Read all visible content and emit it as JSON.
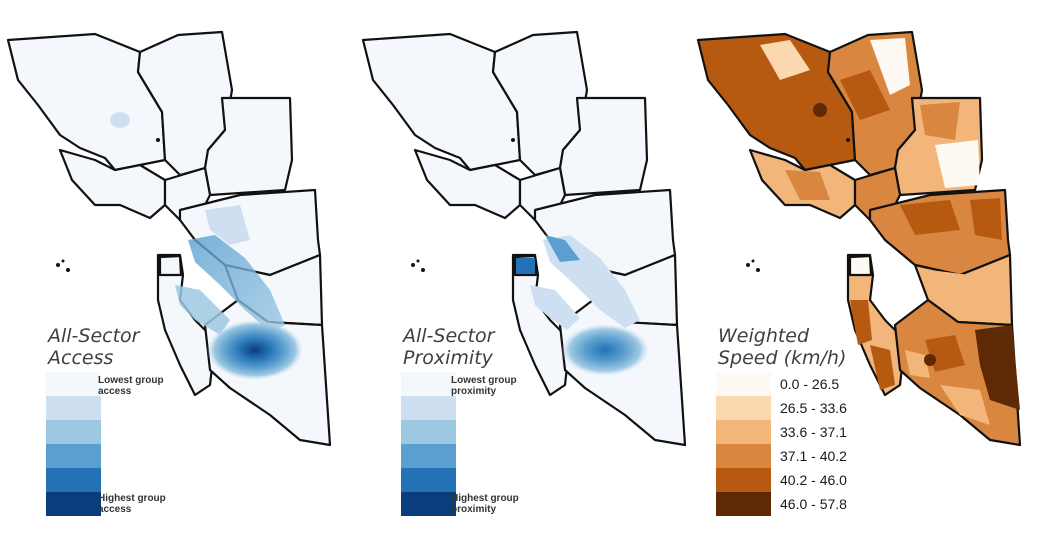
{
  "panels": [
    {
      "title_line1": "All-Sector",
      "title_line2": "Access",
      "low_line1": "Lowest group",
      "low_line2": "access",
      "high_line1": "Highest group",
      "high_line2": "access",
      "colors": [
        "#f4f8fd",
        "#cddff0",
        "#9dc8e2",
        "#5b9fd0",
        "#2372b5",
        "#0a3d7c"
      ]
    },
    {
      "title_line1": "All-Sector",
      "title_line2": "Proximity",
      "low_line1": "Lowest group",
      "low_line2": "proximity",
      "high_line1": "Highest group",
      "high_line2": "proximity",
      "colors": [
        "#f4f8fd",
        "#cddff0",
        "#9dc8e2",
        "#5b9fd0",
        "#2372b5",
        "#0a3d7c"
      ]
    },
    {
      "title_line1": "Weighted",
      "title_line2": "Speed (km/h)",
      "classes": [
        {
          "label": "0.0 - 26.5",
          "color": "#fff9f3"
        },
        {
          "label": "26.5 - 33.6",
          "color": "#fcd8b0"
        },
        {
          "label": "33.6 - 37.1",
          "color": "#f2b57a"
        },
        {
          "label": "37.1 - 40.2",
          "color": "#d98640"
        },
        {
          "label": "40.2 - 46.0",
          "color": "#b65a12"
        },
        {
          "label": "46.0 - 57.8",
          "color": "#5e2a05"
        }
      ]
    }
  ]
}
